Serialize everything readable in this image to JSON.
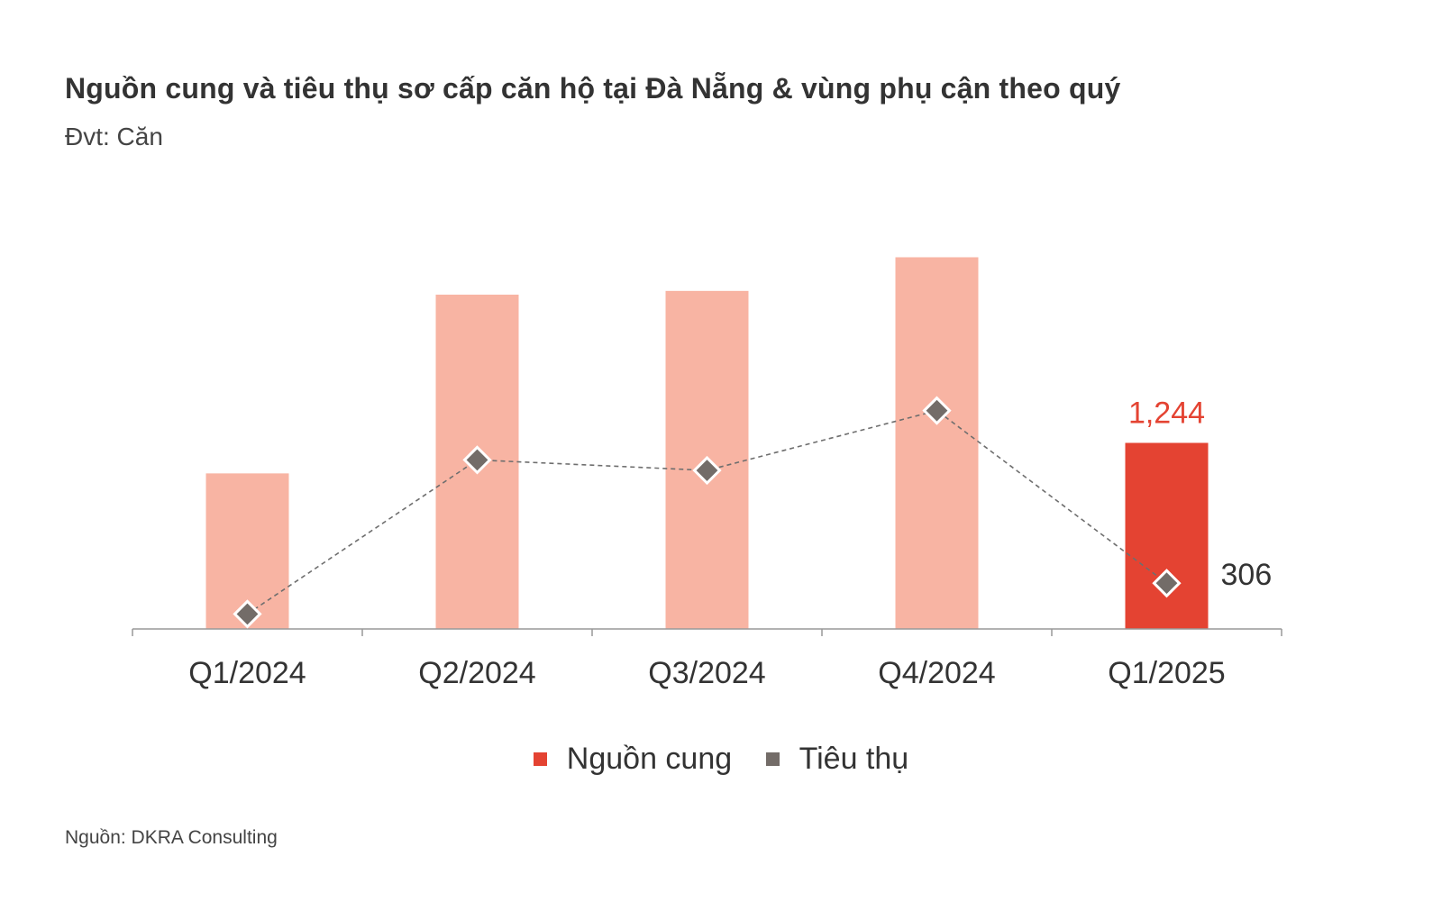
{
  "title": "Nguồn cung và tiêu thụ sơ cấp căn hộ tại Đà Nẵng & vùng phụ cận theo quý",
  "unit": "Đvt: Căn",
  "source": "Nguồn: DKRA Consulting",
  "colors": {
    "supply": "#F8B4A3",
    "supply_highlight": "#E44332",
    "consumption": "#736C68",
    "axis": "#999999",
    "line": "#6E6E6E",
    "highlight_label": "#E44332",
    "value_label": "#333333"
  },
  "chart_data": {
    "type": "bar",
    "categories": [
      "Q1/2024",
      "Q2/2024",
      "Q3/2024",
      "Q4/2024",
      "Q1/2025"
    ],
    "series": [
      {
        "name": "Nguồn cung",
        "type": "bar",
        "values": [
          1040,
          2235,
          2260,
          2485,
          1244
        ]
      },
      {
        "name": "Tiêu thụ",
        "type": "line",
        "values": [
          100,
          1130,
          1060,
          1460,
          306
        ]
      }
    ],
    "ylim": [
      0,
      3000
    ],
    "highlight_index": 4,
    "data_labels": {
      "supply_last": "1,244",
      "consumption_last": "306"
    },
    "legend": [
      "Nguồn cung",
      "Tiêu thụ"
    ],
    "legend_position": "bottom",
    "grid": false
  }
}
